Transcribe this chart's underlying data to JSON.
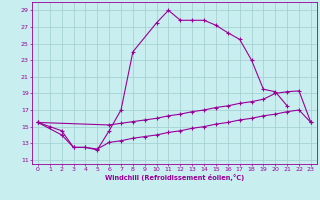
{
  "background_color": "#c8eef0",
  "grid_color": "#a0cece",
  "line_color": "#990099",
  "xlim": [
    -0.5,
    23.5
  ],
  "ylim": [
    10.5,
    30.0
  ],
  "yticks": [
    11,
    13,
    15,
    17,
    19,
    21,
    23,
    25,
    27,
    29
  ],
  "xticks": [
    0,
    1,
    2,
    3,
    4,
    5,
    6,
    7,
    8,
    9,
    10,
    11,
    12,
    13,
    14,
    15,
    16,
    17,
    18,
    19,
    20,
    21,
    22,
    23
  ],
  "xlabel": "Windchill (Refroidissement éolien,°C)",
  "line1_x": [
    0,
    1,
    2,
    3,
    4,
    5,
    6,
    7,
    8,
    10,
    11,
    12,
    13,
    14,
    15,
    16,
    17,
    18,
    19,
    20,
    21
  ],
  "line1_y": [
    15.5,
    15.0,
    14.5,
    12.5,
    12.5,
    12.2,
    14.5,
    17.0,
    24.0,
    27.5,
    29.0,
    27.8,
    27.8,
    27.8,
    27.2,
    26.3,
    25.5,
    23.0,
    19.5,
    19.2,
    17.5
  ],
  "line2_x": [
    0,
    6,
    7,
    8,
    9,
    10,
    11,
    12,
    13,
    14,
    15,
    16,
    17,
    18,
    19,
    20,
    21,
    22,
    23
  ],
  "line2_y": [
    15.5,
    15.2,
    15.4,
    15.6,
    15.8,
    16.0,
    16.3,
    16.5,
    16.8,
    17.0,
    17.3,
    17.5,
    17.8,
    18.0,
    18.3,
    19.0,
    19.2,
    19.3,
    15.5
  ],
  "line3_x": [
    0,
    2,
    3,
    4,
    5,
    6,
    7,
    8,
    9,
    10,
    11,
    12,
    13,
    14,
    15,
    16,
    17,
    18,
    19,
    20,
    21,
    22,
    23
  ],
  "line3_y": [
    15.5,
    14.0,
    12.5,
    12.5,
    12.3,
    13.1,
    13.3,
    13.6,
    13.8,
    14.0,
    14.3,
    14.5,
    14.8,
    15.0,
    15.3,
    15.5,
    15.8,
    16.0,
    16.3,
    16.5,
    16.8,
    17.0,
    15.5
  ]
}
